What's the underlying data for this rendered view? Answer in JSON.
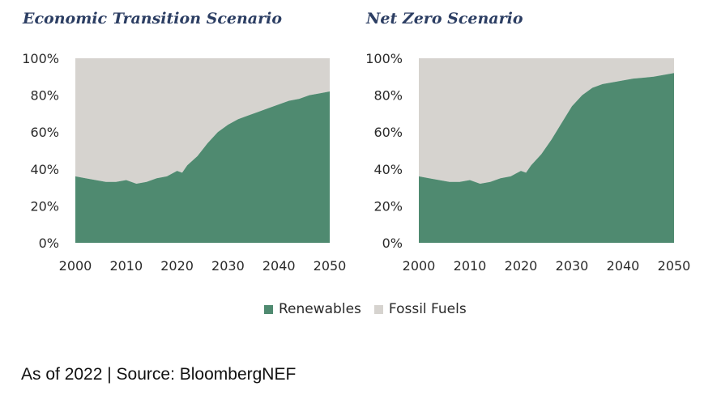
{
  "chart_data": [
    {
      "type": "area",
      "title": "Economic Transition Scenario",
      "x": [
        2000,
        2002,
        2004,
        2006,
        2008,
        2010,
        2012,
        2014,
        2016,
        2018,
        2020,
        2021,
        2022,
        2024,
        2026,
        2028,
        2030,
        2032,
        2034,
        2036,
        2038,
        2040,
        2042,
        2044,
        2046,
        2048,
        2050
      ],
      "series": [
        {
          "name": "Renewables",
          "values": [
            36,
            35,
            34,
            33,
            33,
            34,
            32,
            33,
            35,
            36,
            39,
            38,
            42,
            47,
            54,
            60,
            64,
            67,
            69,
            71,
            73,
            75,
            77,
            78,
            80,
            81,
            82
          ]
        },
        {
          "name": "Fossil Fuels",
          "values": [
            64,
            65,
            66,
            67,
            67,
            66,
            68,
            67,
            65,
            64,
            61,
            62,
            58,
            53,
            46,
            40,
            36,
            33,
            31,
            29,
            27,
            25,
            23,
            22,
            20,
            19,
            18
          ]
        }
      ],
      "stacked": true,
      "xlim": [
        2000,
        2050
      ],
      "ylim": [
        0,
        100
      ],
      "xticks": [
        "2000",
        "2010",
        "2020",
        "2030",
        "2040",
        "2050"
      ],
      "yticks": [
        "0%",
        "20%",
        "40%",
        "60%",
        "80%",
        "100%"
      ],
      "grid": false
    },
    {
      "type": "area",
      "title": "Net Zero Scenario",
      "x": [
        2000,
        2002,
        2004,
        2006,
        2008,
        2010,
        2012,
        2014,
        2016,
        2018,
        2020,
        2021,
        2022,
        2024,
        2026,
        2028,
        2030,
        2032,
        2034,
        2036,
        2038,
        2040,
        2042,
        2044,
        2046,
        2048,
        2050
      ],
      "series": [
        {
          "name": "Renewables",
          "values": [
            36,
            35,
            34,
            33,
            33,
            34,
            32,
            33,
            35,
            36,
            39,
            38,
            42,
            48,
            56,
            65,
            74,
            80,
            84,
            86,
            87,
            88,
            89,
            89.5,
            90,
            91,
            92
          ]
        },
        {
          "name": "Fossil Fuels",
          "values": [
            64,
            65,
            66,
            67,
            67,
            66,
            68,
            67,
            65,
            64,
            61,
            62,
            58,
            52,
            44,
            35,
            26,
            20,
            16,
            14,
            13,
            12,
            11,
            10.5,
            10,
            9,
            8
          ]
        }
      ],
      "stacked": true,
      "xlim": [
        2000,
        2050
      ],
      "ylim": [
        0,
        100
      ],
      "xticks": [
        "2000",
        "2010",
        "2020",
        "2030",
        "2040",
        "2050"
      ],
      "yticks": [
        "0%",
        "20%",
        "40%",
        "60%",
        "80%",
        "100%"
      ],
      "grid": false
    }
  ],
  "legend": {
    "position": "bottom-center",
    "items": [
      {
        "label": "Renewables",
        "color": "#4f8a70"
      },
      {
        "label": "Fossil Fuels",
        "color": "#d6d3cf"
      }
    ]
  },
  "footnote": "As of 2022 | Source: BloombergNEF"
}
